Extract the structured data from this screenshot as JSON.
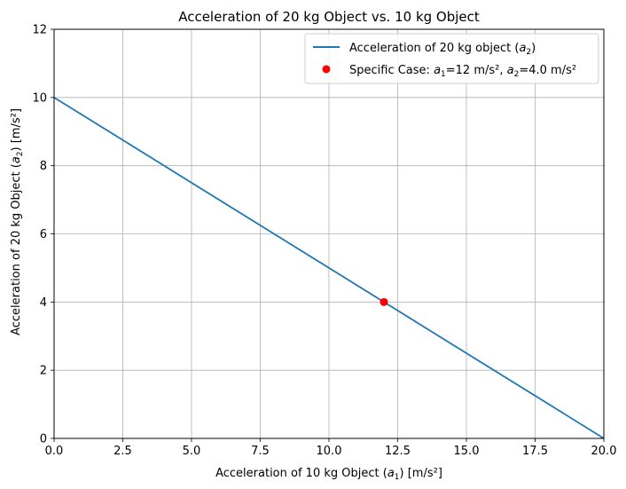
{
  "chart_data": {
    "type": "line",
    "title": "Acceleration of 20 kg Object vs. 10 kg Object",
    "xlabel": {
      "before": "Acceleration of 10 kg Object (",
      "var": "a",
      "sub": "1",
      "after": ") [m/s²]"
    },
    "ylabel": {
      "before": "Acceleration of 20 kg Object (",
      "var": "a",
      "sub": "2",
      "after": ") [m/s²]"
    },
    "xlim": [
      0,
      20
    ],
    "ylim": [
      0,
      12
    ],
    "xticks": [
      0,
      2.5,
      5,
      7.5,
      10,
      12.5,
      15,
      17.5,
      20
    ],
    "xtick_labels": [
      "0.0",
      "2.5",
      "5.0",
      "7.5",
      "10.0",
      "12.5",
      "15.0",
      "17.5",
      "20.0"
    ],
    "yticks": [
      0,
      2,
      4,
      6,
      8,
      10,
      12
    ],
    "ytick_labels": [
      "0",
      "2",
      "4",
      "6",
      "8",
      "10",
      "12"
    ],
    "grid": true,
    "legend_position": "top-right",
    "series": [
      {
        "name": "Acceleration of 20 kg object (a₂)",
        "legend": {
          "before": "Acceleration of 20 kg object (",
          "var": "a",
          "sub": "2",
          "after": ")"
        },
        "type": "line",
        "color": "#1f77b4",
        "x": [
          0,
          20
        ],
        "y": [
          10,
          0
        ]
      },
      {
        "name": "Specific Case: a₁=12 m/s², a₂=4.0 m/s²",
        "legend": {
          "before": "Specific Case: ",
          "var1": "a",
          "sub1": "1",
          "mid": "=12 m/s², ",
          "var2": "a",
          "sub2": "2",
          "after": "=4.0 m/s²"
        },
        "type": "scatter",
        "color": "#ff0000",
        "x": [
          12
        ],
        "y": [
          4
        ]
      }
    ]
  }
}
